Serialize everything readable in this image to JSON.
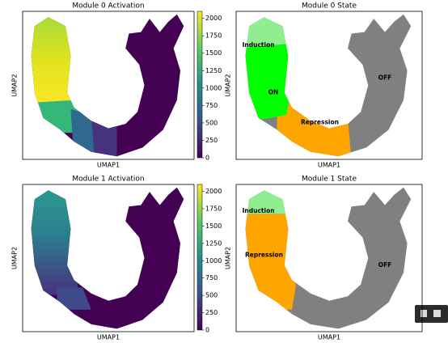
{
  "chart_data": [
    {
      "type": "scatter",
      "title": "Module 0 Activation",
      "xlabel": "UMAP1",
      "ylabel": "UMAP2",
      "colormap": "viridis",
      "colorbar": {
        "lim": [
          0,
          2100
        ],
        "ticks": [
          0,
          250,
          500,
          750,
          1000,
          1250,
          1500,
          1750,
          2000
        ]
      }
    },
    {
      "type": "scatter",
      "title": "Module 0 State",
      "xlabel": "UMAP1",
      "ylabel": "UMAP2",
      "annotations": [
        "Induction",
        "ON",
        "Repression",
        "OFF"
      ]
    },
    {
      "type": "scatter",
      "title": "Module 1 Activation",
      "xlabel": "UMAP1",
      "ylabel": "UMAP2",
      "colormap": "viridis",
      "colorbar": {
        "lim": [
          0,
          2100
        ],
        "ticks": [
          0,
          250,
          500,
          750,
          1000,
          1250,
          1500,
          1750,
          2000
        ]
      }
    },
    {
      "type": "scatter",
      "title": "Module 1 State",
      "xlabel": "UMAP1",
      "ylabel": "UMAP2",
      "annotations": [
        "Induction",
        "Repression",
        "OFF"
      ]
    }
  ]
}
